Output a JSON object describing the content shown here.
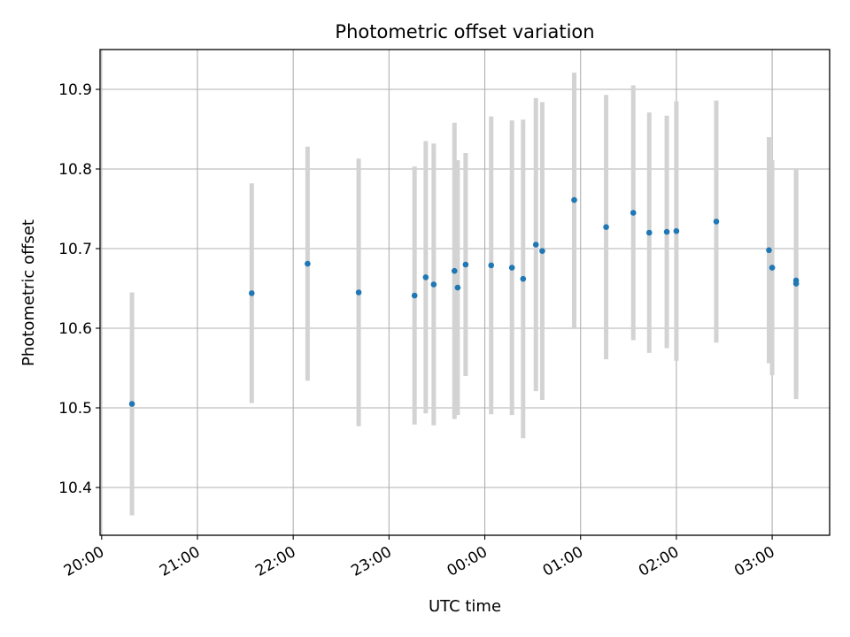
{
  "chart_data": {
    "type": "scatter",
    "title": "Photometric offset variation",
    "xlabel": "UTC time",
    "ylabel": "Photometric offset",
    "grid": true,
    "ylim": [
      10.34,
      10.95
    ],
    "xlim": [
      "2024-01-01T19:59",
      "2024-01-02T03:36"
    ],
    "xtick_labels": [
      "20:00",
      "21:00",
      "22:00",
      "23:00",
      "00:00",
      "01:00",
      "02:00",
      "03:00"
    ],
    "ytick_values": [
      10.4,
      10.5,
      10.6,
      10.7,
      10.8,
      10.9
    ],
    "ytick_labels": [
      "10.4",
      "10.5",
      "10.6",
      "10.7",
      "10.8",
      "10.9"
    ],
    "series": [
      {
        "marker_color": "#1f77b4",
        "errorbar_color": "#d3d3d3",
        "points": [
          {
            "x": "2024-01-01T20:19",
            "y": 10.505,
            "yerr": 0.14
          },
          {
            "x": "2024-01-01T21:34",
            "y": 10.644,
            "yerr": 0.138
          },
          {
            "x": "2024-01-01T22:09",
            "y": 10.681,
            "yerr": 0.147
          },
          {
            "x": "2024-01-01T22:41",
            "y": 10.645,
            "yerr": 0.168
          },
          {
            "x": "2024-01-01T23:16",
            "y": 10.641,
            "yerr": 0.162
          },
          {
            "x": "2024-01-01T23:23",
            "y": 10.664,
            "yerr": 0.171
          },
          {
            "x": "2024-01-01T23:28",
            "y": 10.655,
            "yerr": 0.177
          },
          {
            "x": "2024-01-01T23:41",
            "y": 10.672,
            "yerr": 0.186
          },
          {
            "x": "2024-01-01T23:43",
            "y": 10.651,
            "yerr": 0.16
          },
          {
            "x": "2024-01-01T23:48",
            "y": 10.68,
            "yerr": 0.14
          },
          {
            "x": "2024-01-02T00:04",
            "y": 10.679,
            "yerr": 0.187
          },
          {
            "x": "2024-01-02T00:17",
            "y": 10.676,
            "yerr": 0.185
          },
          {
            "x": "2024-01-02T00:24",
            "y": 10.662,
            "yerr": 0.2
          },
          {
            "x": "2024-01-02T00:32",
            "y": 10.705,
            "yerr": 0.184
          },
          {
            "x": "2024-01-02T00:36",
            "y": 10.697,
            "yerr": 0.187
          },
          {
            "x": "2024-01-02T00:56",
            "y": 10.761,
            "yerr": 0.16
          },
          {
            "x": "2024-01-02T01:16",
            "y": 10.727,
            "yerr": 0.166
          },
          {
            "x": "2024-01-02T01:33",
            "y": 10.745,
            "yerr": 0.16
          },
          {
            "x": "2024-01-02T01:43",
            "y": 10.72,
            "yerr": 0.151
          },
          {
            "x": "2024-01-02T01:54",
            "y": 10.721,
            "yerr": 0.146
          },
          {
            "x": "2024-01-02T02:00",
            "y": 10.722,
            "yerr": 0.163
          },
          {
            "x": "2024-01-02T02:25",
            "y": 10.734,
            "yerr": 0.152
          },
          {
            "x": "2024-01-02T02:58",
            "y": 10.698,
            "yerr": 0.142
          },
          {
            "x": "2024-01-02T03:00",
            "y": 10.676,
            "yerr": 0.135
          },
          {
            "x": "2024-01-02T03:15",
            "y": 10.66,
            "yerr": 0.14
          },
          {
            "x": "2024-01-02T03:15",
            "y": 10.656,
            "yerr": 0.145
          }
        ]
      }
    ]
  }
}
